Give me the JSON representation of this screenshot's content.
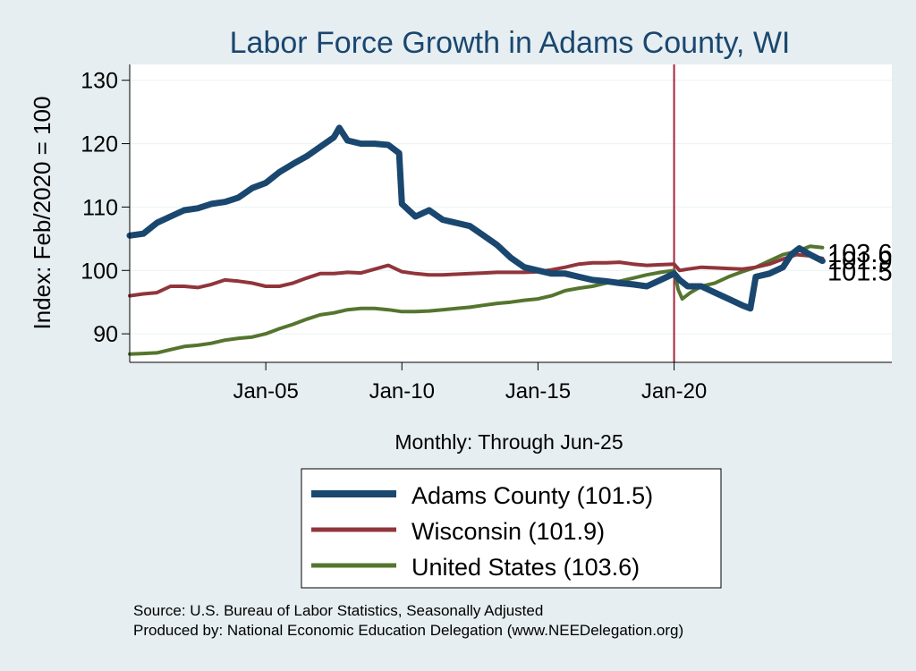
{
  "chart_data": {
    "type": "line",
    "title": "Labor Force Growth in Adams  County, WI",
    "xlabel": "Monthly: Through Jun-25",
    "ylabel": "Index: Feb/2020 = 100",
    "xlim": [
      2000.0,
      2028.0
    ],
    "ylim": [
      85.5,
      132.5
    ],
    "x_ticks": [
      {
        "value": 2005.0,
        "label": "Jan-05"
      },
      {
        "value": 2010.0,
        "label": "Jan-10"
      },
      {
        "value": 2015.0,
        "label": "Jan-15"
      },
      {
        "value": 2020.0,
        "label": "Jan-20"
      }
    ],
    "y_ticks": [
      90,
      100,
      110,
      120,
      130
    ],
    "reference_line": {
      "x": 2020.0,
      "color": "#a3243b"
    },
    "series": [
      {
        "name": "Adams  County",
        "legend_label": "Adams  County (101.5)",
        "final_value": "101.5",
        "color": "#1a476f",
        "emphasis": "thick",
        "x": [
          2000.0,
          2000.5,
          2001.0,
          2001.5,
          2002.0,
          2002.5,
          2003.0,
          2003.5,
          2004.0,
          2004.5,
          2005.0,
          2005.5,
          2006.0,
          2006.5,
          2007.0,
          2007.5,
          2007.7,
          2008.0,
          2008.5,
          2009.0,
          2009.5,
          2009.9,
          2010.0,
          2010.5,
          2011.0,
          2011.5,
          2012.0,
          2012.5,
          2013.0,
          2013.5,
          2014.0,
          2014.5,
          2015.0,
          2015.5,
          2016.0,
          2016.5,
          2017.0,
          2017.5,
          2018.0,
          2018.5,
          2019.0,
          2019.5,
          2020.0,
          2020.2,
          2020.5,
          2021.0,
          2021.5,
          2022.0,
          2022.5,
          2022.8,
          2023.0,
          2023.5,
          2024.0,
          2024.3,
          2024.6,
          2025.0,
          2025.45
        ],
        "y": [
          105.5,
          105.8,
          107.5,
          108.5,
          109.5,
          109.8,
          110.5,
          110.8,
          111.5,
          113.0,
          113.8,
          115.5,
          116.8,
          118.0,
          119.5,
          121.0,
          122.5,
          120.5,
          120.0,
          120.0,
          119.8,
          118.5,
          110.5,
          108.5,
          109.5,
          108.0,
          107.5,
          107.0,
          105.5,
          104.0,
          102.0,
          100.5,
          100.0,
          99.5,
          99.5,
          99.0,
          98.5,
          98.3,
          98.0,
          97.8,
          97.5,
          98.5,
          99.5,
          98.5,
          97.5,
          97.5,
          96.5,
          95.5,
          94.5,
          94.0,
          99.0,
          99.5,
          100.5,
          102.5,
          103.5,
          102.5,
          101.5
        ]
      },
      {
        "name": "Wisconsin",
        "legend_label": "Wisconsin (101.9)",
        "final_value": "101.9",
        "color": "#90353b",
        "emphasis": "normal",
        "x": [
          2000.0,
          2000.5,
          2001.0,
          2001.5,
          2002.0,
          2002.5,
          2003.0,
          2003.5,
          2004.0,
          2004.5,
          2005.0,
          2005.5,
          2006.0,
          2006.5,
          2007.0,
          2007.5,
          2008.0,
          2008.5,
          2009.0,
          2009.5,
          2010.0,
          2010.5,
          2011.0,
          2011.5,
          2012.0,
          2012.5,
          2013.0,
          2013.5,
          2014.0,
          2014.5,
          2015.0,
          2015.5,
          2016.0,
          2016.5,
          2017.0,
          2017.5,
          2018.0,
          2018.5,
          2019.0,
          2019.5,
          2020.0,
          2020.2,
          2020.5,
          2021.0,
          2021.5,
          2022.0,
          2022.5,
          2023.0,
          2023.5,
          2024.0,
          2024.5,
          2025.0,
          2025.45
        ],
        "y": [
          96.0,
          96.3,
          96.5,
          97.5,
          97.5,
          97.3,
          97.8,
          98.5,
          98.3,
          98.0,
          97.5,
          97.5,
          98.0,
          98.8,
          99.5,
          99.5,
          99.7,
          99.6,
          100.2,
          100.8,
          99.8,
          99.5,
          99.3,
          99.3,
          99.4,
          99.5,
          99.6,
          99.7,
          99.7,
          99.7,
          99.8,
          100.1,
          100.5,
          101.0,
          101.2,
          101.2,
          101.3,
          101.0,
          100.8,
          100.9,
          101.0,
          100.0,
          100.2,
          100.5,
          100.4,
          100.3,
          100.2,
          100.5,
          101.0,
          101.8,
          102.5,
          102.3,
          101.9
        ]
      },
      {
        "name": "United States",
        "legend_label": "United States (103.6)",
        "final_value": "103.6",
        "color": "#55752f",
        "emphasis": "normal",
        "x": [
          2000.0,
          2000.5,
          2001.0,
          2001.5,
          2002.0,
          2002.5,
          2003.0,
          2003.5,
          2004.0,
          2004.5,
          2005.0,
          2005.5,
          2006.0,
          2006.5,
          2007.0,
          2007.5,
          2008.0,
          2008.5,
          2009.0,
          2009.5,
          2010.0,
          2010.5,
          2011.0,
          2011.5,
          2012.0,
          2012.5,
          2013.0,
          2013.5,
          2014.0,
          2014.5,
          2015.0,
          2015.5,
          2016.0,
          2016.5,
          2017.0,
          2017.5,
          2018.0,
          2018.5,
          2019.0,
          2019.5,
          2020.0,
          2020.15,
          2020.3,
          2020.6,
          2021.0,
          2021.5,
          2022.0,
          2022.5,
          2023.0,
          2023.5,
          2024.0,
          2024.5,
          2025.0,
          2025.45
        ],
        "y": [
          86.8,
          86.9,
          87.0,
          87.5,
          88.0,
          88.2,
          88.5,
          89.0,
          89.3,
          89.5,
          90.0,
          90.8,
          91.5,
          92.3,
          93.0,
          93.3,
          93.8,
          94.0,
          94.0,
          93.8,
          93.5,
          93.5,
          93.6,
          93.8,
          94.0,
          94.2,
          94.5,
          94.8,
          95.0,
          95.3,
          95.5,
          96.0,
          96.8,
          97.2,
          97.5,
          98.0,
          98.3,
          98.8,
          99.3,
          99.7,
          100.0,
          97.0,
          95.5,
          96.5,
          97.5,
          98.0,
          99.0,
          99.8,
          100.5,
          101.5,
          102.5,
          103.0,
          103.8,
          103.6
        ]
      }
    ],
    "end_labels": [
      "103.6",
      "101.9",
      "101.5"
    ],
    "legend_position": "bottom"
  },
  "footer": {
    "source": "Source: U.S. Bureau of Labor Statistics, Seasonally Adjusted",
    "produced_by": "Produced by: National Economic Education Delegation (www.NEEDelegation.org)"
  },
  "colors": {
    "background": "#e6eef2",
    "plot_background": "#ffffff",
    "grid": "#eaf2f3",
    "title": "#1a476f",
    "text": "#000000"
  }
}
